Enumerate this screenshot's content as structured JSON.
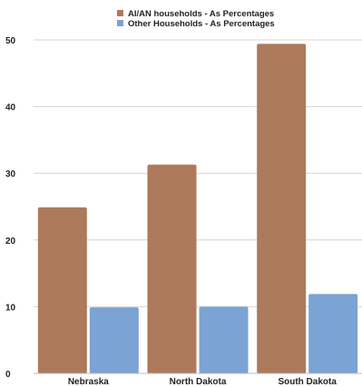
{
  "chart_data": {
    "type": "bar",
    "categories": [
      "Nebraska",
      "North Dakota",
      "South Dakota"
    ],
    "series": [
      {
        "name": "AI/AN households - As Percentages",
        "values": [
          24.9,
          31.3,
          49.4
        ],
        "color": "#ad7a5b"
      },
      {
        "name": "Other Households - As Percentages",
        "values": [
          9.9,
          10.0,
          11.9
        ],
        "color": "#7ba3d3"
      }
    ],
    "ylim": [
      0,
      50
    ],
    "yticks": [
      "0",
      "10",
      "20",
      "30",
      "40",
      "50"
    ],
    "grid": true,
    "legend_position": "top-center",
    "title": "",
    "xlabel": "",
    "ylabel": ""
  }
}
